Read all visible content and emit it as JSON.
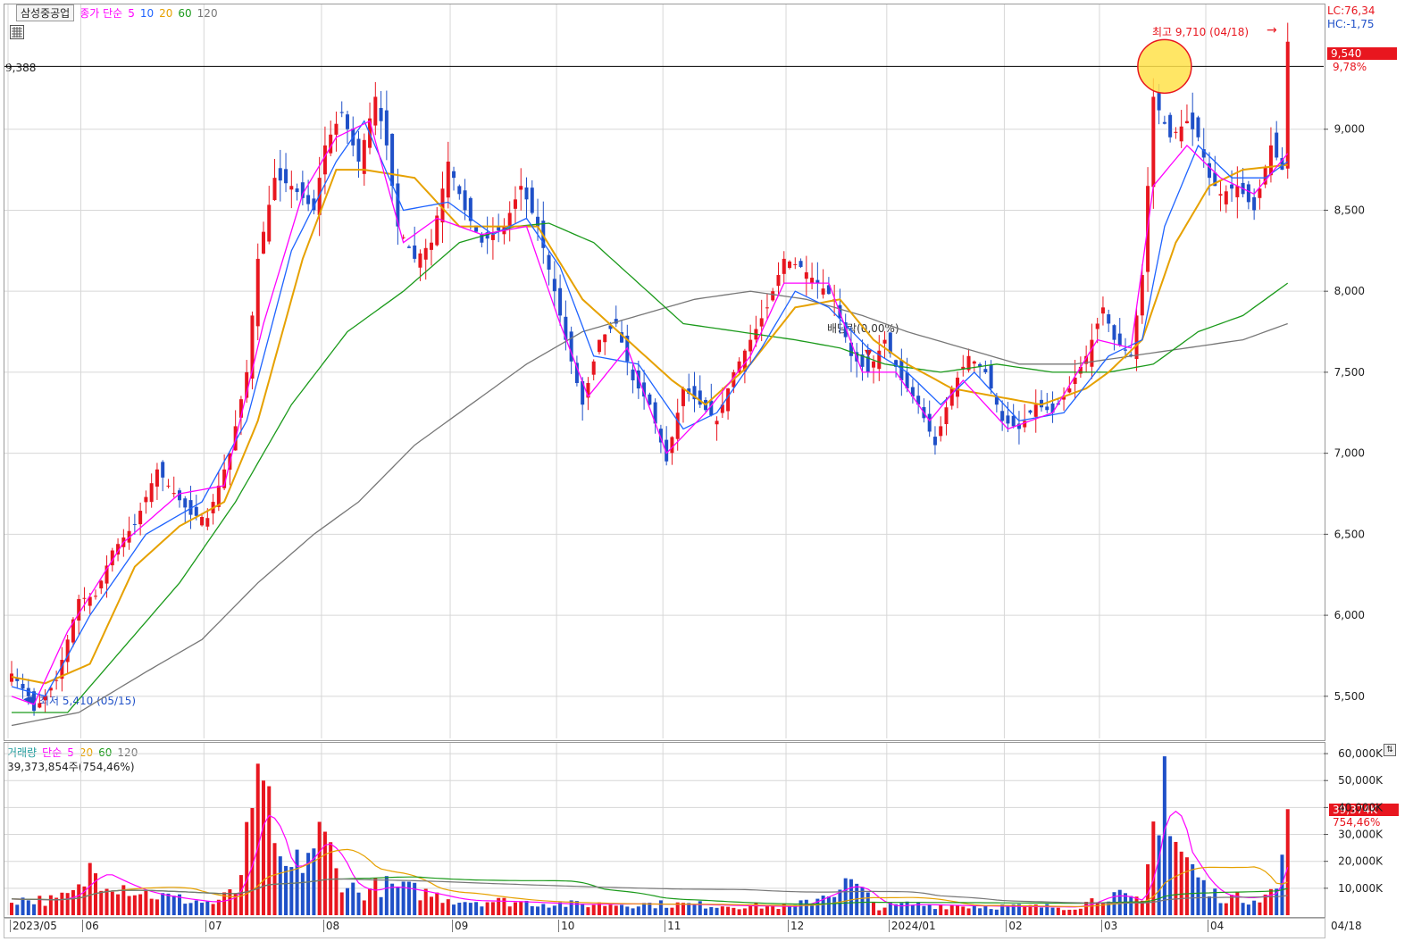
{
  "price_panel": {
    "stock_name": "삼성중공업",
    "indicator_label": "종가 단순",
    "ma_periods": [
      "5",
      "10",
      "20",
      "60",
      "120"
    ],
    "lc": "LC:76,34",
    "hc": "HC:-1,75",
    "ref_line_label": "9,388",
    "current_price_tag": "9,540",
    "current_change": "9,78%",
    "high_annotation": "최고 9,710 (04/18)",
    "low_annotation": "최저 5,410 (05/15)",
    "dividend_annotation": "배당락(0,00%)"
  },
  "volume_panel": {
    "label": "거래량",
    "indicator_label": "단순",
    "ma_periods": [
      "5",
      "20",
      "60",
      "120"
    ],
    "current_volume": "39,373,854주(754,46%)",
    "current_volume_tag": "39,374K",
    "current_volume_pct": "754,46%"
  },
  "x_axis_labels": [
    "2023/05",
    "06",
    "07",
    "08",
    "09",
    "10",
    "11",
    "12",
    "2024/01",
    "02",
    "03",
    "04",
    "04/18"
  ],
  "colors": {
    "up": "#e8161f",
    "down": "#1f50c8",
    "ma5": "#ff00ff",
    "ma10": "#1f64ff",
    "ma20": "#e6a100",
    "ma60": "#1b9a1b",
    "ma120": "#777777",
    "ref_line": "#000000",
    "high_marker": "#ffe24a"
  },
  "chart_data": [
    {
      "type": "candlestick",
      "title": "삼성중공업",
      "y_ticks": [
        5500,
        6000,
        6500,
        7000,
        7500,
        8000,
        8500,
        9000
      ],
      "y_tick_labels": [
        "5,500",
        "6,000",
        "6,500",
        "7,000",
        "7,500",
        "8,000",
        "8,500",
        "9,000"
      ],
      "ylim": [
        5240,
        9770
      ],
      "reference_line": 9388,
      "month_start_index": [
        0,
        13,
        35,
        56,
        79,
        98,
        117,
        139,
        157,
        178,
        195,
        214
      ],
      "total_bars": 229,
      "price_anchors": [
        [
          0,
          5640
        ],
        [
          3,
          5500
        ],
        [
          4,
          5410
        ],
        [
          8,
          5600
        ],
        [
          12,
          6100
        ],
        [
          15,
          6120
        ],
        [
          18,
          6400
        ],
        [
          22,
          6560
        ],
        [
          26,
          6900
        ],
        [
          28,
          6800
        ],
        [
          32,
          6620
        ],
        [
          35,
          6600
        ],
        [
          39,
          7000
        ],
        [
          42,
          7500
        ],
        [
          44,
          8200
        ],
        [
          47,
          8700
        ],
        [
          50,
          8650
        ],
        [
          54,
          8500
        ],
        [
          56,
          8900
        ],
        [
          59,
          9100
        ],
        [
          62,
          8800
        ],
        [
          65,
          9200
        ],
        [
          67,
          8900
        ],
        [
          69,
          8400
        ],
        [
          72,
          8200
        ],
        [
          75,
          8300
        ],
        [
          78,
          8800
        ],
        [
          81,
          8500
        ],
        [
          84,
          8300
        ],
        [
          88,
          8400
        ],
        [
          91,
          8650
        ],
        [
          94,
          8400
        ],
        [
          97,
          8000
        ],
        [
          99,
          7700
        ],
        [
          102,
          7300
        ],
        [
          105,
          7700
        ],
        [
          108,
          7800
        ],
        [
          111,
          7450
        ],
        [
          114,
          7300
        ],
        [
          117,
          6950
        ],
        [
          120,
          7400
        ],
        [
          123,
          7300
        ],
        [
          126,
          7200
        ],
        [
          129,
          7500
        ],
        [
          132,
          7700
        ],
        [
          135,
          7900
        ],
        [
          138,
          8200
        ],
        [
          141,
          8150
        ],
        [
          144,
          8050
        ],
        [
          147,
          7950
        ],
        [
          150,
          7600
        ],
        [
          153,
          7500
        ],
        [
          156,
          7700
        ],
        [
          159,
          7450
        ],
        [
          162,
          7300
        ],
        [
          165,
          7050
        ],
        [
          168,
          7400
        ],
        [
          171,
          7600
        ],
        [
          174,
          7500
        ],
        [
          177,
          7200
        ],
        [
          180,
          7150
        ],
        [
          183,
          7300
        ],
        [
          186,
          7250
        ],
        [
          189,
          7400
        ],
        [
          192,
          7600
        ],
        [
          195,
          7900
        ],
        [
          197,
          7700
        ],
        [
          200,
          7600
        ],
        [
          202,
          8100
        ],
        [
          204,
          9200
        ],
        [
          207,
          8950
        ],
        [
          210,
          9050
        ],
        [
          212,
          8950
        ],
        [
          214,
          8700
        ],
        [
          216,
          8600
        ],
        [
          219,
          8650
        ],
        [
          222,
          8500
        ],
        [
          225,
          8900
        ],
        [
          227,
          8750
        ],
        [
          228,
          9540
        ]
      ],
      "ma_anchors": {
        "ma5": [
          [
            0,
            5500
          ],
          [
            4,
            5450
          ],
          [
            10,
            5900
          ],
          [
            20,
            6450
          ],
          [
            30,
            6750
          ],
          [
            38,
            6800
          ],
          [
            45,
            7800
          ],
          [
            52,
            8600
          ],
          [
            58,
            8950
          ],
          [
            64,
            9050
          ],
          [
            70,
            8300
          ],
          [
            76,
            8450
          ],
          [
            84,
            8350
          ],
          [
            92,
            8400
          ],
          [
            98,
            7800
          ],
          [
            103,
            7350
          ],
          [
            110,
            7650
          ],
          [
            117,
            7000
          ],
          [
            124,
            7250
          ],
          [
            132,
            7600
          ],
          [
            138,
            8050
          ],
          [
            146,
            8050
          ],
          [
            152,
            7500
          ],
          [
            158,
            7500
          ],
          [
            164,
            7200
          ],
          [
            170,
            7450
          ],
          [
            178,
            7150
          ],
          [
            186,
            7250
          ],
          [
            194,
            7700
          ],
          [
            200,
            7650
          ],
          [
            204,
            8650
          ],
          [
            210,
            8900
          ],
          [
            216,
            8700
          ],
          [
            222,
            8600
          ],
          [
            228,
            8850
          ]
        ],
        "ma10": [
          [
            0,
            5560
          ],
          [
            6,
            5500
          ],
          [
            14,
            6000
          ],
          [
            24,
            6500
          ],
          [
            34,
            6700
          ],
          [
            42,
            7200
          ],
          [
            50,
            8250
          ],
          [
            58,
            8800
          ],
          [
            63,
            9050
          ],
          [
            70,
            8500
          ],
          [
            78,
            8550
          ],
          [
            86,
            8350
          ],
          [
            92,
            8450
          ],
          [
            98,
            8150
          ],
          [
            104,
            7600
          ],
          [
            112,
            7550
          ],
          [
            120,
            7150
          ],
          [
            126,
            7250
          ],
          [
            134,
            7650
          ],
          [
            140,
            8000
          ],
          [
            146,
            7900
          ],
          [
            153,
            7650
          ],
          [
            160,
            7500
          ],
          [
            166,
            7300
          ],
          [
            172,
            7500
          ],
          [
            180,
            7200
          ],
          [
            188,
            7250
          ],
          [
            196,
            7600
          ],
          [
            202,
            7700
          ],
          [
            206,
            8400
          ],
          [
            212,
            8900
          ],
          [
            218,
            8700
          ],
          [
            224,
            8700
          ],
          [
            228,
            8800
          ]
        ],
        "ma20": [
          [
            0,
            5620
          ],
          [
            6,
            5580
          ],
          [
            14,
            5700
          ],
          [
            22,
            6300
          ],
          [
            30,
            6550
          ],
          [
            38,
            6700
          ],
          [
            44,
            7200
          ],
          [
            52,
            8200
          ],
          [
            58,
            8750
          ],
          [
            63,
            8750
          ],
          [
            72,
            8700
          ],
          [
            80,
            8400
          ],
          [
            88,
            8400
          ],
          [
            94,
            8400
          ],
          [
            102,
            7950
          ],
          [
            110,
            7700
          ],
          [
            118,
            7450
          ],
          [
            124,
            7300
          ],
          [
            132,
            7550
          ],
          [
            140,
            7900
          ],
          [
            148,
            7950
          ],
          [
            154,
            7700
          ],
          [
            160,
            7550
          ],
          [
            168,
            7400
          ],
          [
            176,
            7350
          ],
          [
            184,
            7300
          ],
          [
            192,
            7400
          ],
          [
            196,
            7500
          ],
          [
            202,
            7700
          ],
          [
            208,
            8300
          ],
          [
            214,
            8650
          ],
          [
            220,
            8750
          ],
          [
            228,
            8780
          ]
        ],
        "ma60": [
          [
            0,
            5400
          ],
          [
            10,
            5400
          ],
          [
            20,
            5800
          ],
          [
            30,
            6200
          ],
          [
            40,
            6700
          ],
          [
            50,
            7300
          ],
          [
            60,
            7750
          ],
          [
            70,
            8000
          ],
          [
            80,
            8300
          ],
          [
            90,
            8400
          ],
          [
            96,
            8420
          ],
          [
            104,
            8300
          ],
          [
            112,
            8050
          ],
          [
            120,
            7800
          ],
          [
            130,
            7750
          ],
          [
            140,
            7700
          ],
          [
            148,
            7650
          ],
          [
            156,
            7550
          ],
          [
            166,
            7500
          ],
          [
            176,
            7550
          ],
          [
            186,
            7500
          ],
          [
            196,
            7500
          ],
          [
            204,
            7550
          ],
          [
            212,
            7750
          ],
          [
            220,
            7850
          ],
          [
            228,
            8050
          ]
        ],
        "ma120": [
          [
            0,
            5320
          ],
          [
            12,
            5400
          ],
          [
            24,
            5650
          ],
          [
            34,
            5850
          ],
          [
            44,
            6200
          ],
          [
            54,
            6500
          ],
          [
            62,
            6700
          ],
          [
            72,
            7050
          ],
          [
            82,
            7300
          ],
          [
            92,
            7550
          ],
          [
            102,
            7750
          ],
          [
            112,
            7850
          ],
          [
            122,
            7950
          ],
          [
            132,
            8000
          ],
          [
            142,
            7950
          ],
          [
            152,
            7850
          ],
          [
            160,
            7750
          ],
          [
            170,
            7650
          ],
          [
            180,
            7550
          ],
          [
            190,
            7550
          ],
          [
            200,
            7600
          ],
          [
            210,
            7650
          ],
          [
            220,
            7700
          ],
          [
            228,
            7800
          ]
        ]
      }
    },
    {
      "type": "bar",
      "title": "거래량",
      "y_ticks": [
        10000,
        20000,
        30000,
        40000,
        50000,
        60000
      ],
      "y_tick_labels": [
        "10,000K",
        "20,000K",
        "30,000K",
        "40,000K",
        "50,000K",
        "60,000K"
      ],
      "ylim": [
        0,
        64000
      ],
      "unit": "K",
      "volume_anchors": [
        [
          0,
          6000
        ],
        [
          8,
          5500
        ],
        [
          12,
          9000
        ],
        [
          14,
          17000
        ],
        [
          20,
          11000
        ],
        [
          24,
          8000
        ],
        [
          30,
          6000
        ],
        [
          36,
          4500
        ],
        [
          40,
          8500
        ],
        [
          45,
          50000
        ],
        [
          47,
          20000
        ],
        [
          50,
          16000
        ],
        [
          56,
          31000
        ],
        [
          58,
          16000
        ],
        [
          62,
          8000
        ],
        [
          66,
          11000
        ],
        [
          72,
          9000
        ],
        [
          80,
          5500
        ],
        [
          90,
          5000
        ],
        [
          100,
          4000
        ],
        [
          110,
          4200
        ],
        [
          120,
          4000
        ],
        [
          130,
          3500
        ],
        [
          140,
          3200
        ],
        [
          150,
          12000
        ],
        [
          155,
          3000
        ],
        [
          160,
          4000
        ],
        [
          170,
          3500
        ],
        [
          180,
          3200
        ],
        [
          190,
          3000
        ],
        [
          196,
          8000
        ],
        [
          202,
          4500
        ],
        [
          206,
          59000
        ],
        [
          207,
          30000
        ],
        [
          210,
          20000
        ],
        [
          214,
          8000
        ],
        [
          220,
          6000
        ],
        [
          226,
          9000
        ],
        [
          228,
          39374
        ]
      ]
    }
  ]
}
